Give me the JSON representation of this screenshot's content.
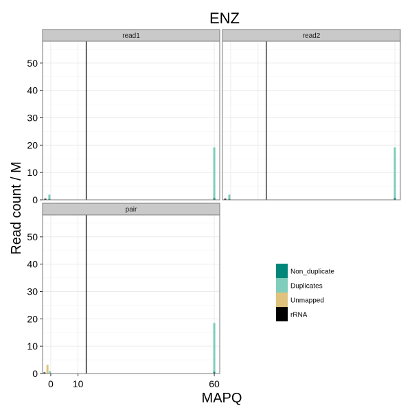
{
  "chart_data": {
    "type": "bar",
    "title": "ENZ",
    "xlabel": "MAPQ",
    "ylabel": "Read count / M",
    "xlim": [
      -3,
      62
    ],
    "ylim": [
      0,
      58
    ],
    "x_ticks": [
      0,
      10,
      60
    ],
    "y_ticks": [
      0,
      10,
      20,
      30,
      40,
      50
    ],
    "grid": true,
    "legend_position": "right",
    "threshold_x": 13,
    "series": [
      {
        "name": "Non_duplicate",
        "color": "#01877a"
      },
      {
        "name": "Duplicates",
        "color": "#7fcdbb"
      },
      {
        "name": "Unmapped",
        "color": "#dfc27d"
      },
      {
        "name": "rRNA",
        "color": "#000000"
      }
    ],
    "panels": [
      {
        "name": "read1",
        "bars": [
          {
            "series": "rRNA",
            "x": -2,
            "value": 0.4
          },
          {
            "series": "Duplicates",
            "x": -0.5,
            "value": 1.9
          },
          {
            "series": "Non_duplicate",
            "x": -0.5,
            "value": 0.3
          },
          {
            "series": "Duplicates",
            "x": 60,
            "value": 19.2
          },
          {
            "series": "Non_duplicate",
            "x": 60,
            "value": 0.6
          }
        ]
      },
      {
        "name": "read2",
        "bars": [
          {
            "series": "rRNA",
            "x": -2,
            "value": 0.4
          },
          {
            "series": "Duplicates",
            "x": -0.5,
            "value": 1.9
          },
          {
            "series": "Non_duplicate",
            "x": -0.5,
            "value": 0.3
          },
          {
            "series": "Duplicates",
            "x": 60,
            "value": 19.2
          },
          {
            "series": "Non_duplicate",
            "x": 60,
            "value": 0.6
          }
        ]
      },
      {
        "name": "pair",
        "bars": [
          {
            "series": "rRNA",
            "x": -2.3,
            "value": 0.4
          },
          {
            "series": "Unmapped",
            "x": -1.2,
            "value": 3.2
          },
          {
            "series": "Duplicates",
            "x": -0.3,
            "value": 0.9
          },
          {
            "series": "Duplicates",
            "x": 60,
            "value": 18.5
          },
          {
            "series": "Non_duplicate",
            "x": 60,
            "value": 0.6
          }
        ]
      }
    ]
  }
}
